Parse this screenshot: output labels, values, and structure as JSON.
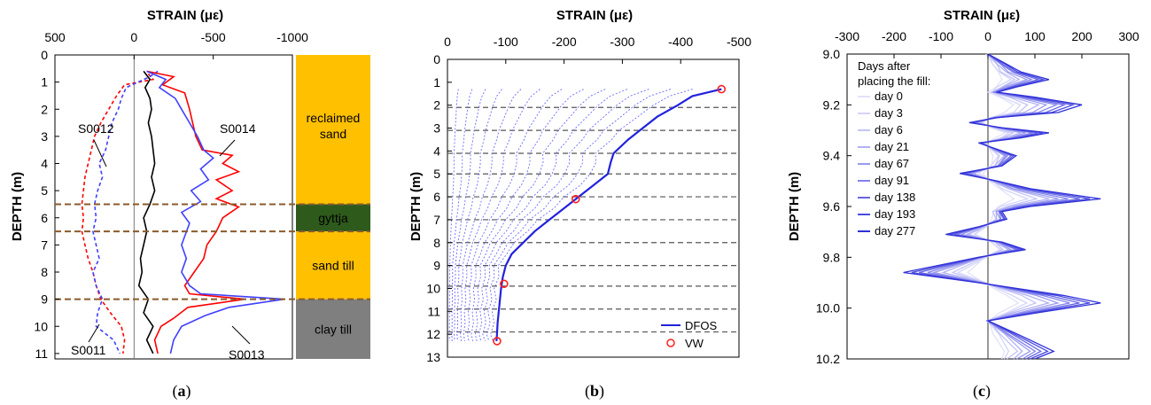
{
  "chart_data": [
    {
      "panel": "a",
      "caption_open": "(",
      "caption_letter": "a",
      "caption_close": ")",
      "type": "line",
      "xlabel": "STRAIN (με)",
      "ylabel": "DEPTH (m)",
      "xlim": [
        500,
        -1000
      ],
      "xticks": [
        500,
        0,
        -500,
        -1000
      ],
      "ylim": [
        0,
        11.2
      ],
      "yticks": [
        0,
        1,
        2,
        3,
        4,
        5,
        6,
        7,
        8,
        9,
        10,
        11
      ],
      "layers": [
        {
          "name": "reclaimed sand",
          "top": 0,
          "bottom": 5.5,
          "color": "#ffc000"
        },
        {
          "name": "gyttja",
          "top": 5.5,
          "bottom": 6.5,
          "color": "#2e5a1c"
        },
        {
          "name": "sand till",
          "top": 6.5,
          "bottom": 9.0,
          "color": "#ffc000"
        },
        {
          "name": "clay till",
          "top": 9.0,
          "bottom": 11.2,
          "color": "#7f7f7f"
        }
      ],
      "boundary_depths": [
        5.5,
        6.5,
        9.0
      ],
      "series": [
        {
          "name": "S0012",
          "color": "#ff0000",
          "dash": true,
          "points": [
            [
              -90,
              0.7
            ],
            [
              -120,
              0.9
            ],
            [
              60,
              1.1
            ],
            [
              110,
              1.5
            ],
            [
              160,
              2.0
            ],
            [
              210,
              2.5
            ],
            [
              250,
              3.0
            ],
            [
              270,
              3.5
            ],
            [
              290,
              4.0
            ],
            [
              310,
              4.5
            ],
            [
              320,
              5.0
            ],
            [
              330,
              5.5
            ],
            [
              320,
              6.0
            ],
            [
              330,
              6.5
            ],
            [
              310,
              7.0
            ],
            [
              290,
              7.5
            ],
            [
              260,
              8.0
            ],
            [
              240,
              8.5
            ],
            [
              210,
              9.0
            ],
            [
              150,
              9.5
            ],
            [
              80,
              10.0
            ],
            [
              60,
              10.5
            ],
            [
              70,
              11.0
            ]
          ]
        },
        {
          "name": "S0011",
          "color": "#4040ff",
          "dash": true,
          "points": [
            [
              -150,
              0.6
            ],
            [
              -100,
              0.8
            ],
            [
              50,
              1.2
            ],
            [
              80,
              1.6
            ],
            [
              100,
              2.0
            ],
            [
              140,
              2.5
            ],
            [
              160,
              3.0
            ],
            [
              180,
              3.5
            ],
            [
              220,
              4.0
            ],
            [
              200,
              4.5
            ],
            [
              230,
              5.0
            ],
            [
              250,
              5.5
            ],
            [
              240,
              6.0
            ],
            [
              260,
              6.5
            ],
            [
              240,
              7.0
            ],
            [
              220,
              7.5
            ],
            [
              260,
              8.0
            ],
            [
              240,
              8.5
            ],
            [
              200,
              9.0
            ],
            [
              230,
              9.5
            ],
            [
              240,
              10.0
            ],
            [
              130,
              10.5
            ],
            [
              90,
              11.0
            ]
          ]
        },
        {
          "name": "black",
          "color": "#000000",
          "dash": false,
          "points": [
            [
              -60,
              0.6
            ],
            [
              -100,
              0.9
            ],
            [
              -70,
              1.2
            ],
            [
              -100,
              1.6
            ],
            [
              -110,
              2.0
            ],
            [
              -90,
              2.5
            ],
            [
              -110,
              3.0
            ],
            [
              -120,
              3.5
            ],
            [
              -130,
              4.0
            ],
            [
              -110,
              4.5
            ],
            [
              -130,
              5.0
            ],
            [
              -100,
              5.5
            ],
            [
              -60,
              6.0
            ],
            [
              -80,
              6.5
            ],
            [
              -60,
              7.0
            ],
            [
              -40,
              7.5
            ],
            [
              -50,
              8.0
            ],
            [
              -30,
              8.5
            ],
            [
              -90,
              9.0
            ],
            [
              -60,
              9.5
            ],
            [
              -120,
              10.0
            ],
            [
              -80,
              10.5
            ],
            [
              -120,
              11.0
            ]
          ]
        },
        {
          "name": "S0014",
          "color": "#ff0000",
          "dash": false,
          "points": [
            [
              -80,
              0.6
            ],
            [
              -250,
              0.8
            ],
            [
              -180,
              1.1
            ],
            [
              -320,
              1.4
            ],
            [
              -350,
              2.0
            ],
            [
              -370,
              2.5
            ],
            [
              -390,
              3.0
            ],
            [
              -430,
              3.5
            ],
            [
              -620,
              3.7
            ],
            [
              -560,
              4.0
            ],
            [
              -660,
              4.3
            ],
            [
              -520,
              4.6
            ],
            [
              -620,
              5.0
            ],
            [
              -520,
              5.3
            ],
            [
              -660,
              5.6
            ],
            [
              -560,
              6.0
            ],
            [
              -520,
              6.5
            ],
            [
              -460,
              7.0
            ],
            [
              -440,
              7.5
            ],
            [
              -380,
              8.0
            ],
            [
              -320,
              8.5
            ],
            [
              -350,
              8.8
            ],
            [
              -700,
              9.0
            ],
            [
              -340,
              9.3
            ],
            [
              -250,
              9.7
            ],
            [
              -170,
              10.0
            ],
            [
              -130,
              10.5
            ],
            [
              -150,
              11.0
            ]
          ]
        },
        {
          "name": "S0013",
          "color": "#4040ff",
          "dash": false,
          "points": [
            [
              -80,
              0.6
            ],
            [
              -200,
              0.9
            ],
            [
              -160,
              1.2
            ],
            [
              -260,
              1.6
            ],
            [
              -300,
              2.0
            ],
            [
              -350,
              2.5
            ],
            [
              -400,
              3.0
            ],
            [
              -440,
              3.5
            ],
            [
              -500,
              3.8
            ],
            [
              -420,
              4.2
            ],
            [
              -470,
              4.6
            ],
            [
              -360,
              5.0
            ],
            [
              -420,
              5.4
            ],
            [
              -300,
              5.8
            ],
            [
              -350,
              6.2
            ],
            [
              -300,
              7.0
            ],
            [
              -330,
              7.5
            ],
            [
              -300,
              8.0
            ],
            [
              -350,
              8.5
            ],
            [
              -420,
              8.8
            ],
            [
              -950,
              9.0
            ],
            [
              -600,
              9.3
            ],
            [
              -450,
              9.6
            ],
            [
              -300,
              10.0
            ],
            [
              -250,
              10.5
            ],
            [
              -230,
              11.0
            ]
          ]
        }
      ],
      "labels": [
        "S0014",
        "S0012",
        "S0011",
        "S0013"
      ]
    },
    {
      "panel": "b",
      "caption_open": "(",
      "caption_letter": "b",
      "caption_close": ")",
      "type": "line",
      "xlabel": "STRAIN (με)",
      "ylabel": "DEPTH (m)",
      "xlim": [
        0,
        -500
      ],
      "xticks": [
        0,
        -100,
        -200,
        -300,
        -400,
        -500
      ],
      "ylim": [
        0,
        13
      ],
      "yticks": [
        0,
        1,
        2,
        3,
        4,
        5,
        6,
        7,
        8,
        9,
        10,
        11,
        12,
        13
      ],
      "dashed_depths": [
        2.1,
        3.1,
        4.1,
        5.0,
        6.0,
        7.0,
        8.0,
        9.0,
        9.9,
        10.9,
        11.9
      ],
      "envelope": [
        [
          -470,
          1.3
        ],
        [
          -420,
          1.6
        ],
        [
          -395,
          2.0
        ],
        [
          -360,
          2.5
        ],
        [
          -330,
          3.1
        ],
        [
          -310,
          3.5
        ],
        [
          -285,
          4.1
        ],
        [
          -280,
          4.5
        ],
        [
          -275,
          5.0
        ],
        [
          -250,
          5.5
        ],
        [
          -225,
          6.0
        ],
        [
          -200,
          6.5
        ],
        [
          -175,
          7.0
        ],
        [
          -150,
          7.5
        ],
        [
          -130,
          8.0
        ],
        [
          -110,
          8.5
        ],
        [
          -100,
          9.0
        ],
        [
          -95,
          9.5
        ],
        [
          -92,
          10.0
        ],
        [
          -90,
          10.5
        ],
        [
          -88,
          11.0
        ],
        [
          -86,
          11.5
        ],
        [
          -85,
          12.0
        ],
        [
          -84,
          12.3
        ]
      ],
      "dfos_label": "DFOS",
      "vw_label": "VW",
      "vw_points": [
        [
          -470,
          1.3
        ],
        [
          -220,
          6.1
        ],
        [
          -97,
          9.8
        ],
        [
          -85,
          12.3
        ]
      ]
    },
    {
      "panel": "c",
      "caption_open": "(",
      "caption_letter": "c",
      "caption_close": ")",
      "type": "line",
      "xlabel": "STRAIN (με)",
      "ylabel": "DEPTH (m)",
      "xlim": [
        -300,
        300
      ],
      "xticks": [
        -300,
        -200,
        -100,
        0,
        100,
        200,
        300
      ],
      "ylim": [
        9.0,
        10.2
      ],
      "yticks": [
        9.0,
        9.2,
        9.4,
        9.6,
        9.8,
        10.0,
        10.2
      ],
      "legend_title_1": "Days after",
      "legend_title_2": "placing the fill:",
      "days": [
        "day 0",
        "day 3",
        "day 6",
        "day 21",
        "day 67",
        "day 91",
        "day 138",
        "day 193",
        "day 277"
      ],
      "profile": [
        [
          0,
          9.0
        ],
        [
          40,
          9.04
        ],
        [
          70,
          9.07
        ],
        [
          130,
          9.1
        ],
        [
          60,
          9.13
        ],
        [
          20,
          9.15
        ],
        [
          100,
          9.17
        ],
        [
          200,
          9.2
        ],
        [
          150,
          9.23
        ],
        [
          20,
          9.25
        ],
        [
          -40,
          9.27
        ],
        [
          30,
          9.29
        ],
        [
          130,
          9.31
        ],
        [
          70,
          9.33
        ],
        [
          -20,
          9.35
        ],
        [
          60,
          9.4
        ],
        [
          30,
          9.44
        ],
        [
          -60,
          9.47
        ],
        [
          20,
          9.5
        ],
        [
          90,
          9.53
        ],
        [
          240,
          9.57
        ],
        [
          90,
          9.6
        ],
        [
          30,
          9.62
        ],
        [
          40,
          9.65
        ],
        [
          -20,
          9.68
        ],
        [
          -90,
          9.71
        ],
        [
          30,
          9.74
        ],
        [
          80,
          9.77
        ],
        [
          -20,
          9.8
        ],
        [
          -180,
          9.86
        ],
        [
          -20,
          9.9
        ],
        [
          160,
          9.95
        ],
        [
          240,
          9.98
        ],
        [
          100,
          10.02
        ],
        [
          0,
          10.05
        ],
        [
          60,
          10.1
        ],
        [
          140,
          10.17
        ],
        [
          100,
          10.2
        ]
      ]
    }
  ]
}
